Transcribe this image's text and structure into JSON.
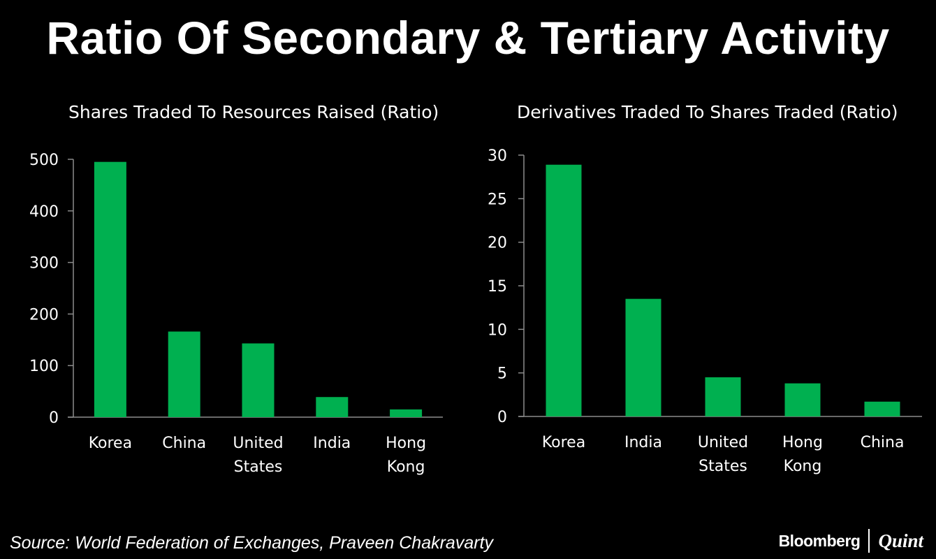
{
  "title": "Ratio Of Secondary & Tertiary Activity",
  "colors": {
    "background": "#000000",
    "bar": "#00b050",
    "text": "#ffffff",
    "axis": "#8c8c8c"
  },
  "chart_data": [
    {
      "type": "bar",
      "title": "Shares Traded To Resources Raised (Ratio)",
      "xlabel": "",
      "ylabel": "",
      "categories": [
        [
          "Korea"
        ],
        [
          "China"
        ],
        [
          "United",
          "States"
        ],
        [
          "India"
        ],
        [
          "Hong",
          "Kong"
        ]
      ],
      "values": [
        495,
        166,
        143,
        39,
        15
      ],
      "ylim": [
        0,
        500
      ],
      "yticks": [
        0,
        100,
        200,
        300,
        400,
        500
      ],
      "grid": false,
      "legend": "none"
    },
    {
      "type": "bar",
      "title": "Derivatives Traded To Shares Traded (Ratio)",
      "xlabel": "",
      "ylabel": "",
      "categories": [
        [
          "Korea"
        ],
        [
          "India"
        ],
        [
          "United",
          "States"
        ],
        [
          "Hong",
          "Kong"
        ],
        [
          "China"
        ]
      ],
      "values": [
        28.9,
        13.5,
        4.5,
        3.8,
        1.7
      ],
      "ylim": [
        0,
        30
      ],
      "yticks": [
        0,
        5,
        10,
        15,
        20,
        25,
        30
      ],
      "grid": false,
      "legend": "none"
    }
  ],
  "footer": {
    "source": "Source: World Federation of Exchanges, Praveen Chakravarty",
    "brand_left": "Bloomberg",
    "brand_right": "Quint"
  }
}
